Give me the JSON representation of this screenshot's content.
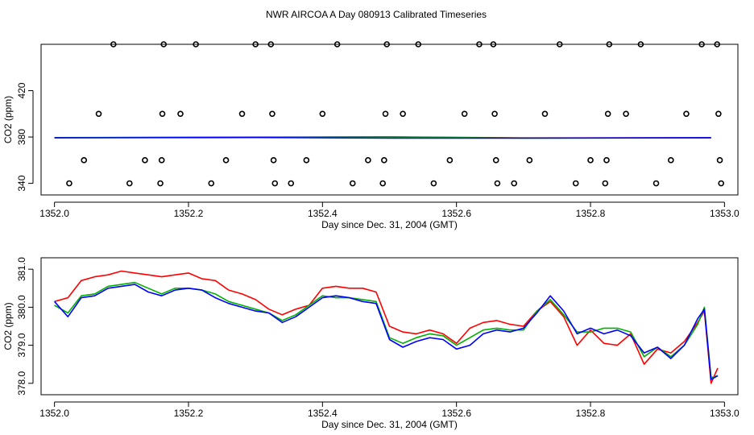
{
  "title": "NWR AIRCOA A  Day 080913  Calibrated Timeseries",
  "chart_data": [
    {
      "type": "scatter",
      "xlabel": "Day since Dec. 31, 2004 (GMT)",
      "ylabel": "CO2 (ppm)",
      "xlim": [
        1351.98,
        1353.02
      ],
      "ylim": [
        330,
        460
      ],
      "xticks": [
        "1352.0",
        "1352.2",
        "1352.4",
        "1352.6",
        "1352.8",
        "1353.0"
      ],
      "yticks": [
        "340",
        "380",
        "420"
      ],
      "grid": false,
      "legend": "none",
      "points": [
        [
          1352.022,
          340
        ],
        [
          1352.044,
          360
        ],
        [
          1352.066,
          400
        ],
        [
          1352.088,
          460
        ],
        [
          1352.112,
          340
        ],
        [
          1352.135,
          360
        ],
        [
          1352.158,
          340
        ],
        [
          1352.16,
          360
        ],
        [
          1352.161,
          400
        ],
        [
          1352.163,
          460
        ],
        [
          1352.188,
          400
        ],
        [
          1352.211,
          460
        ],
        [
          1352.234,
          340
        ],
        [
          1352.256,
          360
        ],
        [
          1352.28,
          400
        ],
        [
          1352.3,
          460
        ],
        [
          1352.323,
          460
        ],
        [
          1352.325,
          400
        ],
        [
          1352.327,
          360
        ],
        [
          1352.329,
          340
        ],
        [
          1352.353,
          340
        ],
        [
          1352.376,
          360
        ],
        [
          1352.4,
          400
        ],
        [
          1352.422,
          460
        ],
        [
          1352.445,
          340
        ],
        [
          1352.468,
          360
        ],
        [
          1352.49,
          340
        ],
        [
          1352.492,
          360
        ],
        [
          1352.494,
          400
        ],
        [
          1352.496,
          460
        ],
        [
          1352.52,
          400
        ],
        [
          1352.543,
          460
        ],
        [
          1352.566,
          340
        ],
        [
          1352.59,
          360
        ],
        [
          1352.612,
          400
        ],
        [
          1352.634,
          460
        ],
        [
          1352.655,
          460
        ],
        [
          1352.657,
          400
        ],
        [
          1352.659,
          360
        ],
        [
          1352.661,
          340
        ],
        [
          1352.686,
          340
        ],
        [
          1352.709,
          360
        ],
        [
          1352.732,
          400
        ],
        [
          1352.754,
          460
        ],
        [
          1352.778,
          340
        ],
        [
          1352.8,
          360
        ],
        [
          1352.822,
          340
        ],
        [
          1352.824,
          360
        ],
        [
          1352.826,
          400
        ],
        [
          1352.828,
          460
        ],
        [
          1352.853,
          400
        ],
        [
          1352.875,
          460
        ],
        [
          1352.898,
          340
        ],
        [
          1352.92,
          360
        ],
        [
          1352.943,
          400
        ],
        [
          1352.966,
          460
        ],
        [
          1352.989,
          460
        ],
        [
          1352.991,
          400
        ],
        [
          1352.993,
          360
        ],
        [
          1352.995,
          340
        ]
      ],
      "series": [
        {
          "color": "#ff0000",
          "x": [
            1352.0,
            1352.5,
            1352.7,
            1352.98
          ],
          "values": [
            379.5,
            380.2,
            379.2,
            379.3
          ]
        },
        {
          "color": "#00b000",
          "x": [
            1352.0,
            1352.5,
            1352.7,
            1352.98
          ],
          "values": [
            379.4,
            380.0,
            379.1,
            379.2
          ]
        },
        {
          "color": "#0000ff",
          "x": [
            1352.0,
            1352.3,
            1352.5,
            1352.7,
            1352.98
          ],
          "values": [
            379.3,
            379.6,
            379.0,
            379.0,
            379.4
          ]
        }
      ]
    },
    {
      "type": "line",
      "xlabel": "Day since Dec. 31, 2004 (GMT)",
      "ylabel": "CO2 (ppm)",
      "xlim": [
        1351.98,
        1353.02
      ],
      "ylim": [
        377.7,
        381.3
      ],
      "xticks": [
        "1352.0",
        "1352.2",
        "1352.4",
        "1352.6",
        "1352.8",
        "1353.0"
      ],
      "yticks": [
        "378.0",
        "379.0",
        "380.0",
        "381.0"
      ],
      "grid": false,
      "legend": "none",
      "series": [
        {
          "color": "#ff0000",
          "x": [
            1352.0,
            1352.02,
            1352.04,
            1352.06,
            1352.08,
            1352.1,
            1352.12,
            1352.14,
            1352.16,
            1352.18,
            1352.2,
            1352.22,
            1352.24,
            1352.26,
            1352.28,
            1352.3,
            1352.32,
            1352.34,
            1352.36,
            1352.38,
            1352.4,
            1352.42,
            1352.44,
            1352.46,
            1352.48,
            1352.5,
            1352.52,
            1352.54,
            1352.56,
            1352.58,
            1352.6,
            1352.62,
            1352.64,
            1352.66,
            1352.68,
            1352.7,
            1352.72,
            1352.74,
            1352.76,
            1352.78,
            1352.8,
            1352.82,
            1352.84,
            1352.86,
            1352.88,
            1352.9,
            1352.92,
            1352.94,
            1352.96,
            1352.97,
            1352.98,
            1352.99
          ],
          "values": [
            380.15,
            380.25,
            380.7,
            380.8,
            380.85,
            380.95,
            380.9,
            380.85,
            380.8,
            380.85,
            380.9,
            380.75,
            380.7,
            380.45,
            380.35,
            380.2,
            379.95,
            379.8,
            379.95,
            380.05,
            380.5,
            380.55,
            380.5,
            380.5,
            380.4,
            379.5,
            379.35,
            379.3,
            379.4,
            379.3,
            379.05,
            379.45,
            379.6,
            379.65,
            379.55,
            379.5,
            379.9,
            380.15,
            379.75,
            379.0,
            379.4,
            379.05,
            379.0,
            379.3,
            378.5,
            378.9,
            378.8,
            379.1,
            379.6,
            379.9,
            378.0,
            378.4
          ]
        },
        {
          "color": "#00b000",
          "x": [
            1352.0,
            1352.02,
            1352.04,
            1352.06,
            1352.08,
            1352.1,
            1352.12,
            1352.14,
            1352.16,
            1352.18,
            1352.2,
            1352.22,
            1352.24,
            1352.26,
            1352.28,
            1352.3,
            1352.32,
            1352.34,
            1352.36,
            1352.38,
            1352.4,
            1352.42,
            1352.44,
            1352.46,
            1352.48,
            1352.5,
            1352.52,
            1352.54,
            1352.56,
            1352.58,
            1352.6,
            1352.62,
            1352.64,
            1352.66,
            1352.68,
            1352.7,
            1352.72,
            1352.74,
            1352.76,
            1352.78,
            1352.8,
            1352.82,
            1352.84,
            1352.86,
            1352.88,
            1352.9,
            1352.92,
            1352.94,
            1352.96,
            1352.97,
            1352.98,
            1352.99
          ],
          "values": [
            380.05,
            379.85,
            380.3,
            380.35,
            380.55,
            380.6,
            380.65,
            380.5,
            380.35,
            380.5,
            380.5,
            380.45,
            380.35,
            380.15,
            380.05,
            379.95,
            379.85,
            379.65,
            379.8,
            380.05,
            380.3,
            380.25,
            380.25,
            380.2,
            380.15,
            379.2,
            379.05,
            379.2,
            379.3,
            379.25,
            379.0,
            379.2,
            379.4,
            379.45,
            379.4,
            379.4,
            379.9,
            380.2,
            379.8,
            379.35,
            379.35,
            379.45,
            379.45,
            379.35,
            378.7,
            378.95,
            378.7,
            379.0,
            379.55,
            380.0,
            378.15,
            378.2
          ]
        },
        {
          "color": "#0000ff",
          "x": [
            1352.0,
            1352.02,
            1352.04,
            1352.06,
            1352.08,
            1352.1,
            1352.12,
            1352.14,
            1352.16,
            1352.18,
            1352.2,
            1352.22,
            1352.24,
            1352.26,
            1352.28,
            1352.3,
            1352.32,
            1352.34,
            1352.36,
            1352.38,
            1352.4,
            1352.42,
            1352.44,
            1352.46,
            1352.48,
            1352.5,
            1352.52,
            1352.54,
            1352.56,
            1352.58,
            1352.6,
            1352.62,
            1352.64,
            1352.66,
            1352.68,
            1352.7,
            1352.72,
            1352.74,
            1352.76,
            1352.78,
            1352.8,
            1352.82,
            1352.84,
            1352.86,
            1352.88,
            1352.9,
            1352.92,
            1352.94,
            1352.96,
            1352.97,
            1352.98,
            1352.99
          ],
          "values": [
            380.15,
            379.75,
            380.25,
            380.3,
            380.5,
            380.55,
            380.6,
            380.4,
            380.3,
            380.45,
            380.5,
            380.45,
            380.25,
            380.1,
            380.0,
            379.9,
            379.85,
            379.6,
            379.75,
            380.0,
            380.25,
            380.3,
            380.25,
            380.15,
            380.1,
            379.15,
            378.95,
            379.1,
            379.2,
            379.15,
            378.9,
            379.0,
            379.3,
            379.4,
            379.35,
            379.45,
            379.85,
            380.3,
            379.9,
            379.3,
            379.45,
            379.3,
            379.4,
            379.25,
            378.8,
            378.95,
            378.65,
            379.0,
            379.7,
            379.95,
            378.1,
            378.2
          ]
        }
      ]
    }
  ]
}
